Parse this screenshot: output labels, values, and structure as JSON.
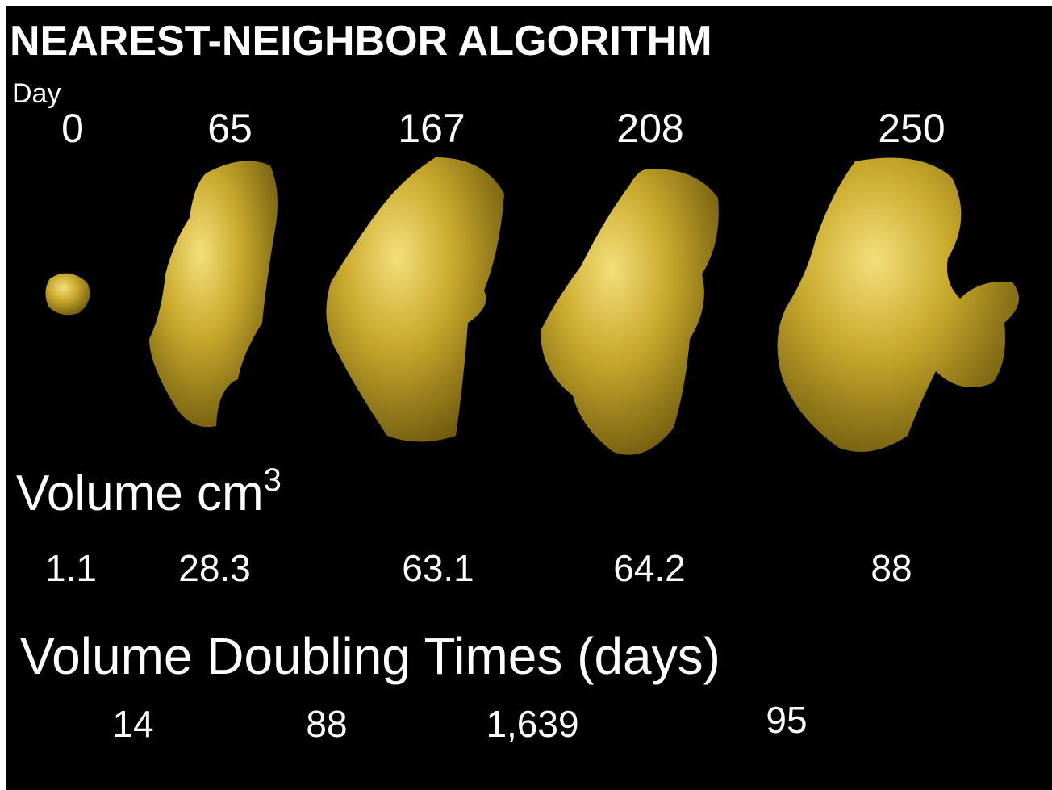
{
  "title": "NEAREST-NEIGHBOR ALGORITHM",
  "day_label": "Day",
  "days": [
    "0",
    "65",
    "167",
    "208",
    "250"
  ],
  "volume_label": {
    "text": "Volume cm",
    "superscript": "3"
  },
  "volumes": [
    "1.1",
    "28.3",
    "63.1",
    "64.2",
    "88"
  ],
  "doubling_label": "Volume Doubling Times (days)",
  "doubling_times": [
    "14",
    "88",
    "1,639",
    "95"
  ]
}
